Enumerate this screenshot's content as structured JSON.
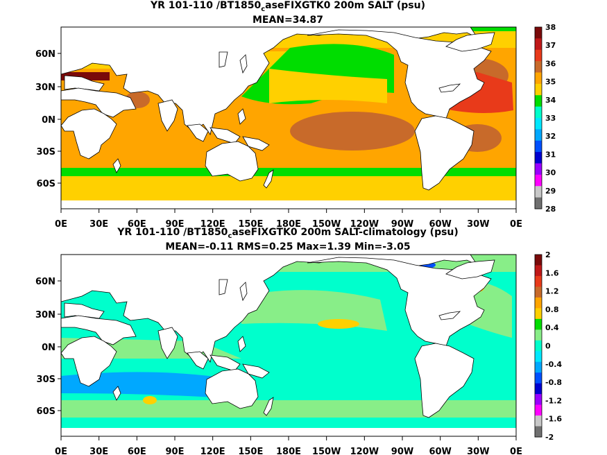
{
  "panels": [
    {
      "title_pre": "YR 101-110 /BT1850",
      "title_sub": "c",
      "title_post": "aseFIXGTK0 200m SALT (psu)",
      "stats": "MEAN=34.87",
      "lon_labels": [
        "0E",
        "30E",
        "60E",
        "90E",
        "120E",
        "150E",
        "180E",
        "150W",
        "120W",
        "90W",
        "60W",
        "30W",
        "0E"
      ],
      "lat_labels": [
        "60N",
        "30N",
        "0N",
        "30S",
        "60S"
      ],
      "colorbar": {
        "labels": [
          "38",
          "37",
          "36",
          "35",
          "34",
          "33",
          "32",
          "31",
          "30",
          "29",
          "28"
        ],
        "colors": [
          "#7a0a0a",
          "#c01818",
          "#e83a1a",
          "#c86a2a",
          "#ffa500",
          "#ffd000",
          "#00dd00",
          "#00ffcc",
          "#00e8ff",
          "#00a8ff",
          "#0050ff",
          "#0000d0",
          "#9a00ff",
          "#ff00ff",
          "#c8c8c8",
          "#707070"
        ]
      }
    },
    {
      "title_pre": "YR 101-110 /BT1850",
      "title_sub": "c",
      "title_post": "aseFIXGTK0 200m SALT-climatology (psu)",
      "stats": "MEAN=-0.11   RMS=0.25   Max=1.39   Min=-3.05",
      "lon_labels": [
        "0E",
        "30E",
        "60E",
        "90E",
        "120E",
        "150E",
        "180E",
        "150W",
        "120W",
        "90W",
        "60W",
        "30W",
        "0E"
      ],
      "lat_labels": [
        "60N",
        "30N",
        "0N",
        "30S",
        "60S"
      ],
      "colorbar": {
        "labels": [
          "2",
          "1.6",
          "1.2",
          "0.8",
          "0.4",
          "0",
          "-0.4",
          "-0.8",
          "-1.2",
          "-1.6",
          "-2"
        ],
        "colors": [
          "#7a0a0a",
          "#c01818",
          "#e83a1a",
          "#c86a2a",
          "#ffa500",
          "#ffd000",
          "#00dd00",
          "#88ee88",
          "#00ffcc",
          "#00e8ff",
          "#00a8ff",
          "#0050ff",
          "#0000d0",
          "#9a00ff",
          "#ff00ff",
          "#c8c8c8",
          "#707070"
        ]
      }
    }
  ]
}
